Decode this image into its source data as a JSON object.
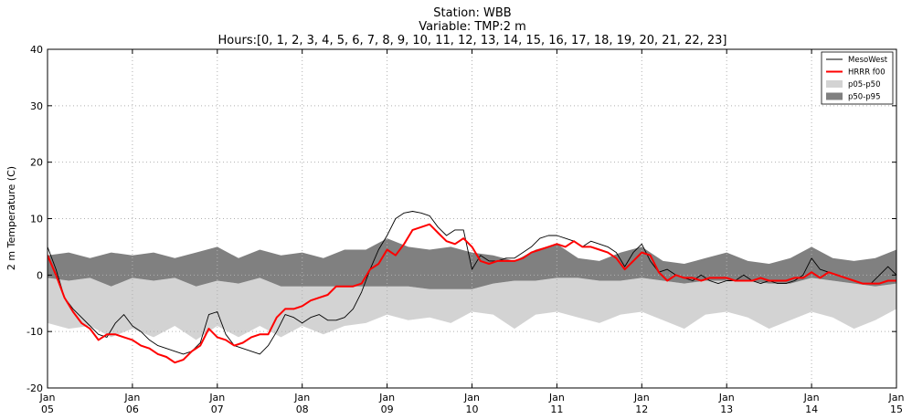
{
  "chart_data": {
    "type": "line",
    "title_lines": [
      "Station: WBB",
      "Variable: TMP:2 m",
      "Hours:[0, 1, 2, 3, 4, 5, 6, 7, 8, 9, 10, 11, 12, 13, 14, 15, 16, 17, 18, 19, 20, 21, 22, 23]"
    ],
    "ylabel": "2 m Temperature (C)",
    "xlabel": "",
    "ylim": [
      -20,
      40
    ],
    "yticks": [
      -20,
      -10,
      0,
      10,
      20,
      30,
      40
    ],
    "xlim": [
      5,
      15
    ],
    "xticks": [
      {
        "x": 5,
        "month": "Jan",
        "day": "05"
      },
      {
        "x": 6,
        "month": "Jan",
        "day": "06"
      },
      {
        "x": 7,
        "month": "Jan",
        "day": "07"
      },
      {
        "x": 8,
        "month": "Jan",
        "day": "08"
      },
      {
        "x": 9,
        "month": "Jan",
        "day": "09"
      },
      {
        "x": 10,
        "month": "Jan",
        "day": "10"
      },
      {
        "x": 11,
        "month": "Jan",
        "day": "11"
      },
      {
        "x": 12,
        "month": "Jan",
        "day": "12"
      },
      {
        "x": 13,
        "month": "Jan",
        "day": "13"
      },
      {
        "x": 14,
        "month": "Jan",
        "day": "14"
      },
      {
        "x": 15,
        "month": "Jan",
        "day": "15"
      }
    ],
    "grid": true,
    "legend_position": "top-right",
    "colors": {
      "mesowest": "#000000",
      "hrrr": "#ff0000",
      "p05_p50": "#d3d3d3",
      "p50_p95": "#808080"
    },
    "legend": [
      {
        "label": "MesoWest",
        "kind": "line",
        "color": "#000000"
      },
      {
        "label": "HRRR f00",
        "kind": "line",
        "color": "#ff0000"
      },
      {
        "label": "p05-p50",
        "kind": "patch",
        "color": "#d3d3d3"
      },
      {
        "label": "p50-p95",
        "kind": "patch",
        "color": "#808080"
      }
    ],
    "series": [
      {
        "name": "p05-p50",
        "kind": "band",
        "x": [
          5.0,
          5.25,
          5.5,
          5.75,
          6.0,
          6.25,
          6.5,
          6.75,
          7.0,
          7.25,
          7.5,
          7.75,
          8.0,
          8.25,
          8.5,
          8.75,
          9.0,
          9.25,
          9.5,
          9.75,
          10.0,
          10.25,
          10.5,
          10.75,
          11.0,
          11.25,
          11.5,
          11.75,
          12.0,
          12.25,
          12.5,
          12.75,
          13.0,
          13.25,
          13.5,
          13.75,
          14.0,
          14.25,
          14.5,
          14.75,
          15.0
        ],
        "lower": [
          -8.5,
          -9.5,
          -9.0,
          -11.0,
          -9.5,
          -11.0,
          -9.0,
          -11.5,
          -9.0,
          -11.0,
          -9.0,
          -11.0,
          -9.0,
          -10.5,
          -9.0,
          -8.5,
          -7.0,
          -8.0,
          -7.5,
          -8.5,
          -6.5,
          -7.0,
          -9.5,
          -7.0,
          -6.5,
          -7.5,
          -8.5,
          -7.0,
          -6.5,
          -8.0,
          -9.5,
          -7.0,
          -6.5,
          -7.5,
          -9.5,
          -8.0,
          -6.5,
          -7.5,
          -9.5,
          -8.0,
          -6.0
        ],
        "upper": [
          -0.5,
          -1.0,
          -0.5,
          -2.0,
          -0.5,
          -1.0,
          -0.5,
          -2.0,
          -1.0,
          -1.5,
          -0.5,
          -2.0,
          -2.0,
          -2.0,
          -2.0,
          -2.0,
          -2.0,
          -2.0,
          -2.5,
          -2.5,
          -2.5,
          -1.5,
          -1.0,
          -1.0,
          -0.5,
          -0.5,
          -1.0,
          -1.0,
          -0.5,
          -1.0,
          -1.5,
          -1.0,
          -1.0,
          -1.0,
          -1.5,
          -1.5,
          -0.5,
          -1.0,
          -1.5,
          -2.0,
          -1.5
        ]
      },
      {
        "name": "p50-p95",
        "kind": "band",
        "x": [
          5.0,
          5.25,
          5.5,
          5.75,
          6.0,
          6.25,
          6.5,
          6.75,
          7.0,
          7.25,
          7.5,
          7.75,
          8.0,
          8.25,
          8.5,
          8.75,
          9.0,
          9.25,
          9.5,
          9.75,
          10.0,
          10.25,
          10.5,
          10.75,
          11.0,
          11.25,
          11.5,
          11.75,
          12.0,
          12.25,
          12.5,
          12.75,
          13.0,
          13.25,
          13.5,
          13.75,
          14.0,
          14.25,
          14.5,
          14.75,
          15.0
        ],
        "lower": [
          -0.5,
          -1.0,
          -0.5,
          -2.0,
          -0.5,
          -1.0,
          -0.5,
          -2.0,
          -1.0,
          -1.5,
          -0.5,
          -2.0,
          -2.0,
          -2.0,
          -2.0,
          -2.0,
          -2.0,
          -2.0,
          -2.5,
          -2.5,
          -2.5,
          -1.5,
          -1.0,
          -1.0,
          -0.5,
          -0.5,
          -1.0,
          -1.0,
          -0.5,
          -1.0,
          -1.5,
          -1.0,
          -1.0,
          -1.0,
          -1.5,
          -1.5,
          -0.5,
          -1.0,
          -1.5,
          -2.0,
          -1.5
        ],
        "upper": [
          3.5,
          4.0,
          3.0,
          4.0,
          3.5,
          4.0,
          3.0,
          4.0,
          5.0,
          3.0,
          4.5,
          3.5,
          4.0,
          3.0,
          4.5,
          4.5,
          6.5,
          5.0,
          4.5,
          5.0,
          4.0,
          3.5,
          2.5,
          4.5,
          5.5,
          3.0,
          2.5,
          4.0,
          5.0,
          2.5,
          2.0,
          3.0,
          4.0,
          2.5,
          2.0,
          3.0,
          5.0,
          3.0,
          2.5,
          3.0,
          4.5
        ]
      },
      {
        "name": "MesoWest",
        "kind": "line",
        "x": [
          5.0,
          5.1,
          5.2,
          5.3,
          5.4,
          5.5,
          5.6,
          5.7,
          5.8,
          5.9,
          6.0,
          6.1,
          6.2,
          6.3,
          6.4,
          6.5,
          6.6,
          6.7,
          6.8,
          6.9,
          7.0,
          7.1,
          7.2,
          7.3,
          7.4,
          7.5,
          7.6,
          7.7,
          7.8,
          7.9,
          8.0,
          8.1,
          8.2,
          8.3,
          8.4,
          8.5,
          8.6,
          8.7,
          8.8,
          8.9,
          9.0,
          9.1,
          9.2,
          9.3,
          9.4,
          9.5,
          9.6,
          9.7,
          9.8,
          9.9,
          10.0,
          10.1,
          10.2,
          10.3,
          10.4,
          10.5,
          10.6,
          10.7,
          10.8,
          10.9,
          11.0,
          11.1,
          11.2,
          11.3,
          11.4,
          11.5,
          11.6,
          11.7,
          11.8,
          11.9,
          12.0,
          12.1,
          12.2,
          12.3,
          12.4,
          12.5,
          12.6,
          12.7,
          12.8,
          12.9,
          13.0,
          13.1,
          13.2,
          13.3,
          13.4,
          13.5,
          13.6,
          13.7,
          13.8,
          13.9,
          14.0,
          14.1,
          14.2,
          14.3,
          14.4,
          14.5,
          14.6,
          14.7,
          14.8,
          14.9,
          15.0
        ],
        "y": [
          5.0,
          1.0,
          -4.0,
          -6.0,
          -7.5,
          -9.0,
          -10.5,
          -11.0,
          -8.5,
          -7.0,
          -9.0,
          -10.0,
          -11.5,
          -12.5,
          -13.0,
          -13.5,
          -14.0,
          -13.5,
          -12.0,
          -7.0,
          -6.5,
          -10.5,
          -12.5,
          -13.0,
          -13.5,
          -14.0,
          -12.5,
          -10.0,
          -7.0,
          -7.5,
          -8.5,
          -7.5,
          -7.0,
          -8.0,
          -8.0,
          -7.5,
          -6.0,
          -3.0,
          1.0,
          4.5,
          7.0,
          10.0,
          11.0,
          11.3,
          11.0,
          10.5,
          8.5,
          7.0,
          8.0,
          8.0,
          1.0,
          3.5,
          2.5,
          2.5,
          3.0,
          3.0,
          4.0,
          5.0,
          6.5,
          7.0,
          7.0,
          6.5,
          6.0,
          5.0,
          6.0,
          5.5,
          5.0,
          4.0,
          1.5,
          4.0,
          5.5,
          2.5,
          0.5,
          1.0,
          0.0,
          -0.5,
          -1.0,
          0.0,
          -1.0,
          -1.5,
          -1.0,
          -1.0,
          0.0,
          -1.0,
          -1.5,
          -1.0,
          -1.5,
          -1.5,
          -1.0,
          0.0,
          3.0,
          1.0,
          0.5,
          0.0,
          -0.5,
          -1.0,
          -1.5,
          -1.5,
          0.0,
          1.5,
          0.0
        ]
      },
      {
        "name": "HRRR f00",
        "kind": "line",
        "x": [
          5.0,
          5.1,
          5.2,
          5.3,
          5.4,
          5.5,
          5.6,
          5.7,
          5.8,
          5.9,
          6.0,
          6.1,
          6.2,
          6.3,
          6.4,
          6.5,
          6.6,
          6.7,
          6.8,
          6.9,
          7.0,
          7.1,
          7.2,
          7.3,
          7.4,
          7.5,
          7.6,
          7.7,
          7.8,
          7.9,
          8.0,
          8.1,
          8.2,
          8.3,
          8.4,
          8.5,
          8.6,
          8.7,
          8.8,
          8.9,
          9.0,
          9.1,
          9.2,
          9.3,
          9.4,
          9.5,
          9.6,
          9.7,
          9.8,
          9.9,
          10.0,
          10.1,
          10.2,
          10.3,
          10.4,
          10.5,
          10.6,
          10.7,
          10.8,
          10.9,
          11.0,
          11.1,
          11.2,
          11.3,
          11.4,
          11.5,
          11.6,
          11.7,
          11.8,
          11.9,
          12.0,
          12.1,
          12.2,
          12.3,
          12.4,
          12.5,
          12.6,
          12.7,
          12.8,
          12.9,
          13.0,
          13.1,
          13.2,
          13.3,
          13.4,
          13.5,
          13.6,
          13.7,
          13.8,
          13.9,
          14.0,
          14.1,
          14.2,
          14.3,
          14.4,
          14.5,
          14.6,
          14.7,
          14.8,
          14.9,
          15.0
        ],
        "y": [
          3.5,
          0.0,
          -4.0,
          -6.5,
          -8.5,
          -9.5,
          -11.5,
          -10.5,
          -10.5,
          -11.0,
          -11.5,
          -12.5,
          -13.0,
          -14.0,
          -14.5,
          -15.5,
          -15.0,
          -13.5,
          -12.5,
          -9.5,
          -11.0,
          -11.5,
          -12.5,
          -12.0,
          -11.0,
          -10.5,
          -10.5,
          -7.5,
          -6.0,
          -6.0,
          -5.5,
          -4.5,
          -4.0,
          -3.5,
          -2.0,
          -2.0,
          -2.0,
          -1.5,
          1.0,
          2.0,
          4.5,
          3.5,
          5.5,
          8.0,
          8.5,
          9.0,
          7.5,
          6.0,
          5.5,
          6.5,
          5.0,
          2.5,
          2.0,
          2.5,
          2.5,
          2.5,
          3.0,
          4.0,
          4.5,
          5.0,
          5.5,
          5.0,
          6.0,
          5.0,
          5.0,
          4.5,
          4.0,
          3.0,
          1.0,
          2.5,
          4.0,
          3.5,
          0.5,
          -1.0,
          0.0,
          -0.5,
          -0.5,
          -1.0,
          -0.5,
          -0.5,
          -0.5,
          -1.0,
          -1.0,
          -1.0,
          -0.5,
          -1.0,
          -1.0,
          -1.0,
          -0.5,
          -0.5,
          0.5,
          -0.5,
          0.5,
          0.0,
          -0.5,
          -1.0,
          -1.5,
          -1.5,
          -1.5,
          -1.0,
          -1.0
        ]
      }
    ]
  }
}
